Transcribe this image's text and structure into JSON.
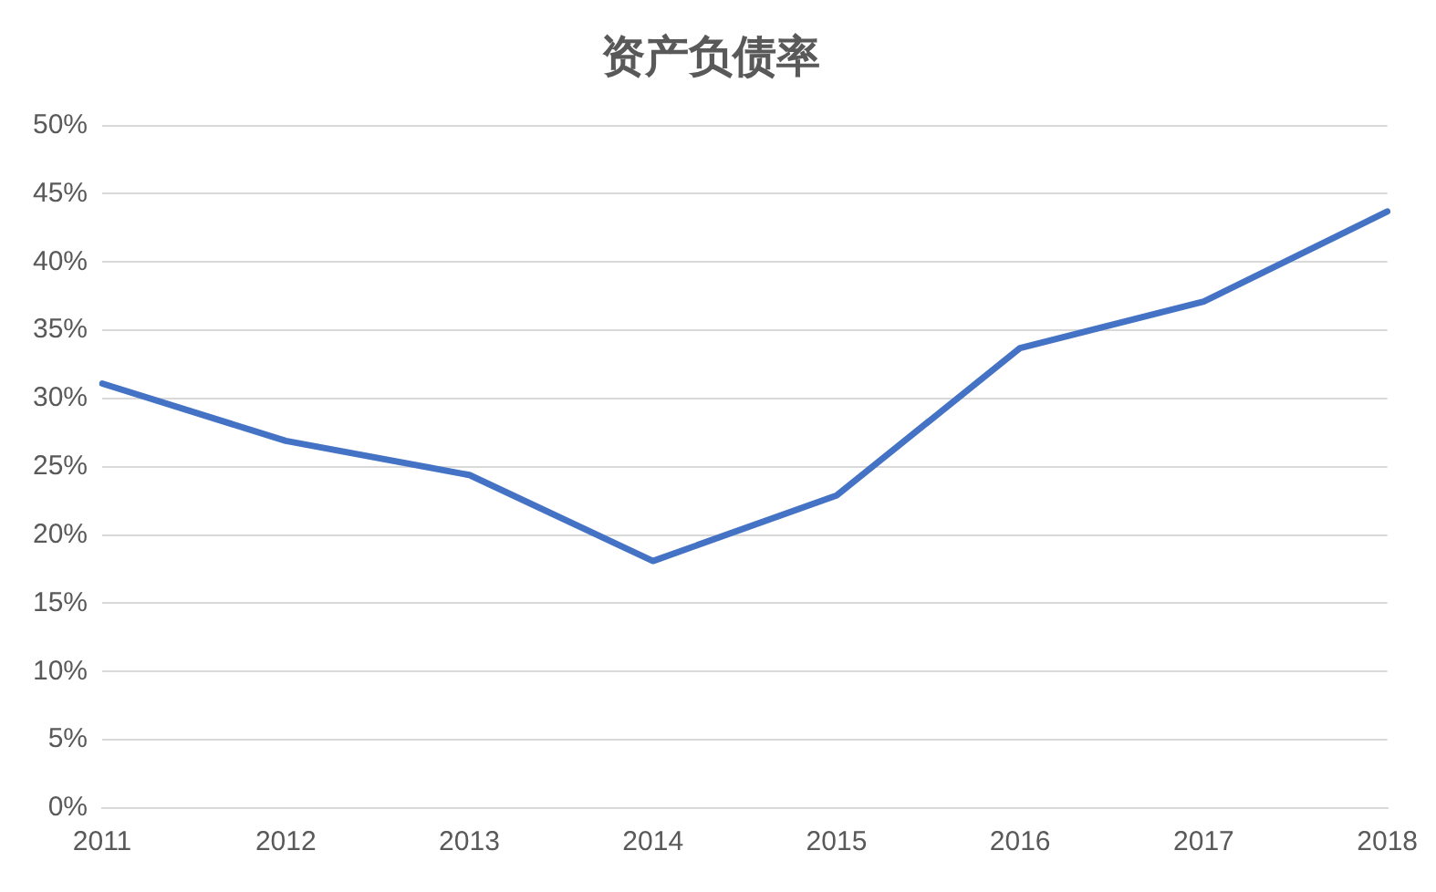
{
  "chart_data": {
    "type": "line",
    "title": "资产负债率",
    "categories": [
      "2011",
      "2012",
      "2013",
      "2014",
      "2015",
      "2016",
      "2017",
      "2018"
    ],
    "series": [
      {
        "color": "#4472c4",
        "values": [
          31.1,
          26.9,
          24.4,
          18.1,
          22.9,
          33.7,
          37.1,
          43.7
        ]
      }
    ],
    "ylim": [
      0,
      50
    ],
    "yticks": [
      {
        "value": 0,
        "label": "0%"
      },
      {
        "value": 5,
        "label": "5%"
      },
      {
        "value": 10,
        "label": "10%"
      },
      {
        "value": 15,
        "label": "15%"
      },
      {
        "value": 20,
        "label": "20%"
      },
      {
        "value": 25,
        "label": "25%"
      },
      {
        "value": 30,
        "label": "30%"
      },
      {
        "value": 35,
        "label": "35%"
      },
      {
        "value": 40,
        "label": "40%"
      },
      {
        "value": 45,
        "label": "45%"
      },
      {
        "value": 50,
        "label": "50%"
      }
    ],
    "grid": "y",
    "legend": false,
    "marker": "none",
    "line_style": "solid"
  }
}
